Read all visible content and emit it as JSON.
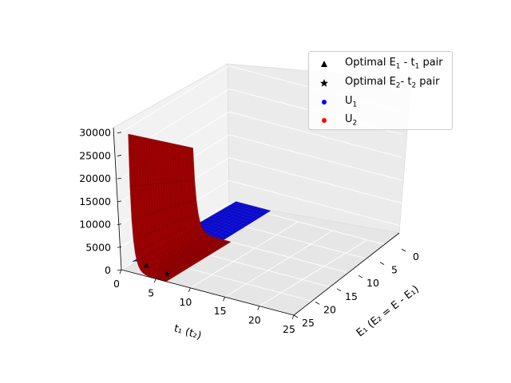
{
  "chart_data": {
    "type": "surface3d",
    "title": "",
    "x_axis": {
      "label": "t₁ (t₂)",
      "ticks": [
        0,
        5,
        10,
        15,
        20,
        25
      ],
      "range": [
        0,
        25
      ]
    },
    "y_axis": {
      "label": "E₁ (E₂ = E - E₁)",
      "ticks": [
        0,
        5,
        10,
        15,
        20,
        25
      ],
      "range": [
        0,
        25
      ]
    },
    "z_axis": {
      "label": "",
      "ticks": [
        0,
        5000,
        10000,
        15000,
        20000,
        25000,
        30000
      ],
      "range": [
        0,
        31000
      ]
    },
    "grid": true,
    "legend_placement": "top-right",
    "series": [
      {
        "name": "Optimal E₁ - t₁ pair",
        "marker": "triangle",
        "color": "#000000",
        "points": [
          {
            "t": 3,
            "E": 24,
            "value": 1500
          }
        ]
      },
      {
        "name": "Optimal E₂- t₂ pair",
        "marker": "star",
        "color": "#000000",
        "points": [
          {
            "t": 6,
            "E": 24,
            "value": 800
          }
        ]
      },
      {
        "name": "U₁",
        "marker": "circle",
        "color": "#0000ff",
        "surface": "low flat surface across E₁ 0–24, t 1–6"
      },
      {
        "name": "U₂",
        "marker": "circle",
        "color": "#ff0000",
        "surface": "steep wall rising to ~30000 at t ≈ 1, decaying toward 0 by t ≈ 6"
      }
    ]
  },
  "legend": {
    "items": [
      {
        "main": "Optimal E",
        "sub": "1",
        "rest": " - t",
        "sub2": "1",
        "tail": " pair",
        "marker": "triangle",
        "color": "#000000"
      },
      {
        "main": "Optimal E",
        "sub": "2",
        "rest": "- t",
        "sub2": "2",
        "tail": " pair",
        "marker": "star",
        "color": "#000000"
      },
      {
        "main": "U",
        "sub": "1",
        "rest": "",
        "sub2": "",
        "tail": "",
        "marker": "circle",
        "color": "#0000ff"
      },
      {
        "main": "U",
        "sub": "2",
        "rest": "",
        "sub2": "",
        "tail": "",
        "marker": "circle",
        "color": "#ff0000"
      }
    ]
  }
}
